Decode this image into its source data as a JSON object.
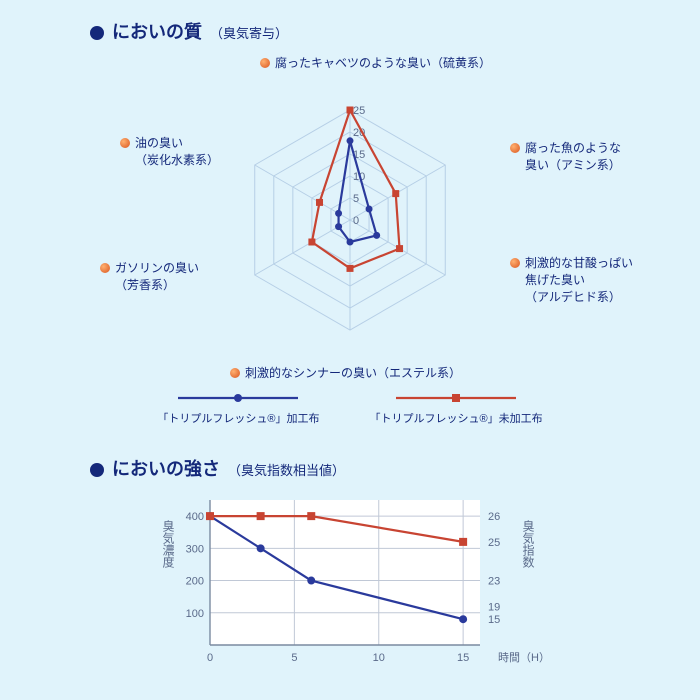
{
  "colors": {
    "background": "#e0f3fb",
    "bullet": "#14287a",
    "title": "#14287a",
    "subtitle": "#14287a",
    "radar_grid": "#b6cfe6",
    "series_blue": "#2a3a9c",
    "series_red": "#c84432",
    "axis_text": "#5a6a8a",
    "xy_grid": "#c0c8d6",
    "xy_axis": "#7a8aa0",
    "label_bullet_dark": "#d9541e"
  },
  "section1": {
    "title": "においの質",
    "subtitle": "（臭気寄与）"
  },
  "radar": {
    "max": 25,
    "rings": [
      5,
      10,
      15,
      20,
      25
    ],
    "ring_labels": [
      "5",
      "10",
      "15",
      "20",
      "25"
    ],
    "center_label": "0",
    "axes": [
      {
        "label1": "腐ったキャベツのような臭い（硫黄系）",
        "label2": ""
      },
      {
        "label1": "腐った魚のような",
        "label2": "臭い（アミン系）"
      },
      {
        "label1": "刺激的な甘酸っぱい",
        "label2": "焦げた臭い",
        "label3": "（アルデヒド系）"
      },
      {
        "label1": "刺激的なシンナーの臭い（エステル系）",
        "label2": ""
      },
      {
        "label1": "ガソリンの臭い",
        "label2": "（芳香系）"
      },
      {
        "label1": "油の臭い",
        "label2": "（炭化水素系）"
      }
    ],
    "series": [
      {
        "name": "blue",
        "color": "#2a3a9c",
        "values": [
          18,
          5,
          7,
          5,
          3,
          3
        ],
        "marker": "circle"
      },
      {
        "name": "red",
        "color": "#c84432",
        "values": [
          25,
          12,
          13,
          11,
          10,
          8
        ],
        "marker": "square"
      }
    ]
  },
  "legend": {
    "items": [
      {
        "label": "「トリプルフレッシュ®」加工布",
        "color": "#2a3a9c",
        "marker": "circle"
      },
      {
        "label": "「トリプルフレッシュ®」未加工布",
        "color": "#c84432",
        "marker": "square"
      }
    ]
  },
  "section2": {
    "title": "においの強さ",
    "subtitle": "（臭気指数相当値）"
  },
  "xy": {
    "x_ticks": [
      0,
      5,
      10,
      15
    ],
    "x_label": "時間（H）",
    "y_left_label": "臭気濃度",
    "y_left_ticks": [
      100,
      200,
      300,
      400
    ],
    "y_left_range": [
      0,
      450
    ],
    "y_right_label": "臭気指数",
    "y_right_ticks_at_points": [
      26,
      25,
      23,
      19,
      15
    ],
    "series": {
      "blue": {
        "color": "#2a3a9c",
        "marker": "circle",
        "pts": [
          [
            0,
            400
          ],
          [
            3,
            300
          ],
          [
            6,
            200
          ],
          [
            15,
            80
          ]
        ]
      },
      "red": {
        "color": "#c84432",
        "marker": "square",
        "pts": [
          [
            0,
            400
          ],
          [
            3,
            400
          ],
          [
            6,
            400
          ],
          [
            15,
            320
          ]
        ]
      }
    }
  }
}
